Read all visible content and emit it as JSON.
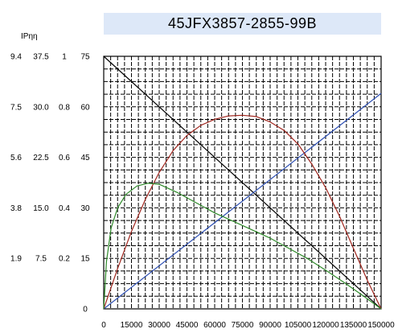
{
  "chart_data": {
    "type": "line",
    "title": "45JFX3857-2855-99B",
    "axis_header": "IPηη",
    "x": {
      "ticks": [
        0,
        15000,
        30000,
        45000,
        60000,
        75000,
        90000,
        105000,
        120000,
        135000,
        150000
      ],
      "range": [
        0,
        150000
      ]
    },
    "y_columns": [
      {
        "ticks": [
          "0",
          "1.9",
          "3.8",
          "5.6",
          "7.5",
          "9.4"
        ],
        "range": [
          0,
          9.4
        ]
      },
      {
        "ticks": [
          "0",
          "7.5",
          "15.0",
          "22.5",
          "30.0",
          "37.5"
        ],
        "range": [
          0,
          37.5
        ]
      },
      {
        "ticks": [
          "0",
          "0.2",
          "0.4",
          "0.6",
          "0.8",
          "1"
        ],
        "range": [
          0,
          1
        ]
      },
      {
        "ticks": [
          "0",
          "15",
          "30",
          "45",
          "60",
          "75"
        ],
        "range": [
          0,
          75
        ]
      }
    ],
    "grid": true,
    "series": [
      {
        "color": "#000000",
        "scale": "col3",
        "points": [
          [
            0,
            75
          ],
          [
            150000,
            0
          ]
        ]
      },
      {
        "color": "#2d4fb3",
        "scale": "col3",
        "points": [
          [
            0,
            0
          ],
          [
            150000,
            64
          ]
        ]
      },
      {
        "color": "#a0261e",
        "scale": "col3",
        "points": [
          [
            0,
            0
          ],
          [
            7500,
            12
          ],
          [
            15000,
            23
          ],
          [
            22500,
            32.5
          ],
          [
            30000,
            40.5
          ],
          [
            37500,
            47
          ],
          [
            45000,
            51.5
          ],
          [
            52500,
            54.5
          ],
          [
            60000,
            56.3
          ],
          [
            67500,
            57.3
          ],
          [
            75000,
            57.5
          ],
          [
            82500,
            57.1
          ],
          [
            90000,
            55.5
          ],
          [
            97500,
            53
          ],
          [
            105000,
            49
          ],
          [
            112500,
            43
          ],
          [
            120000,
            36
          ],
          [
            127500,
            27.5
          ],
          [
            135000,
            18
          ],
          [
            142500,
            8.5
          ],
          [
            150000,
            0
          ]
        ]
      },
      {
        "color": "#2f8a2a",
        "scale": "col3",
        "points": [
          [
            0,
            0
          ],
          [
            1500,
            14
          ],
          [
            4000,
            24
          ],
          [
            7500,
            30
          ],
          [
            12000,
            34
          ],
          [
            18000,
            36.5
          ],
          [
            24000,
            37.3
          ],
          [
            30000,
            37
          ],
          [
            40000,
            34.5
          ],
          [
            50000,
            31.5
          ],
          [
            60000,
            28.5
          ],
          [
            70000,
            26
          ],
          [
            80000,
            23.5
          ],
          [
            90000,
            21
          ],
          [
            100000,
            18
          ],
          [
            110000,
            15
          ],
          [
            120000,
            11.5
          ],
          [
            130000,
            7.8
          ],
          [
            140000,
            4
          ],
          [
            150000,
            0
          ]
        ]
      }
    ]
  }
}
